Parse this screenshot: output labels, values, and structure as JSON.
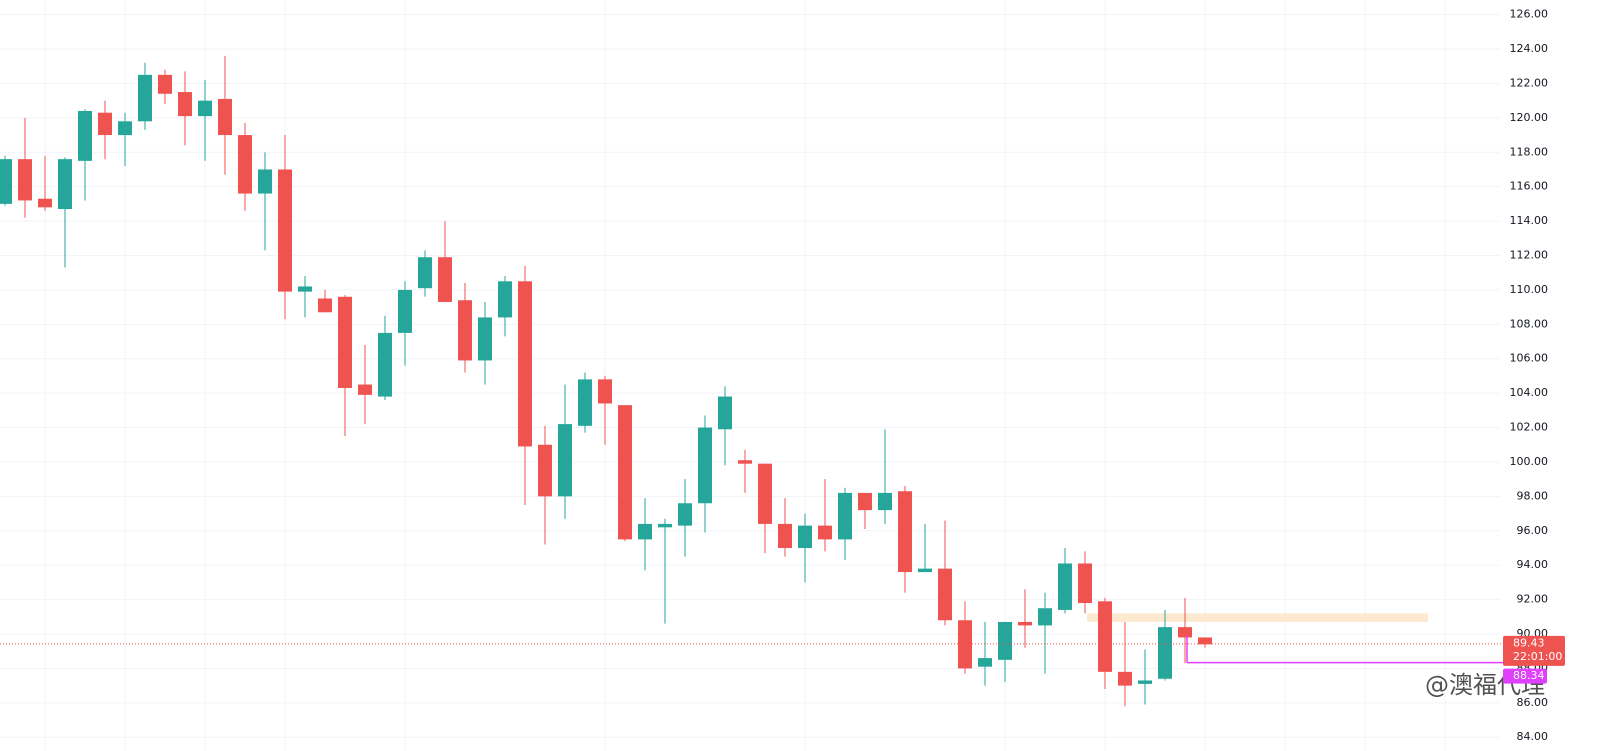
{
  "chart_data": {
    "type": "candlestick",
    "series": [
      {
        "up_color": "#26a69a",
        "down_color": "#ef5350",
        "open": [
          115.0,
          117.6,
          115.3,
          114.7,
          117.5,
          120.3,
          119.0,
          119.8,
          122.5,
          121.5,
          120.1,
          121.1,
          119.0,
          115.6,
          117.0,
          109.9,
          109.5,
          109.6,
          104.5,
          103.8,
          107.5,
          110.1,
          111.9,
          109.4,
          105.9,
          108.4,
          110.5,
          101.0,
          98.0,
          102.1,
          104.8,
          103.3,
          95.5,
          96.2,
          96.3,
          97.6,
          101.9,
          100.1,
          99.9,
          96.4,
          95.0,
          96.3,
          95.5,
          98.2,
          97.2,
          98.3,
          93.6,
          93.8,
          90.8,
          88.1,
          88.5,
          90.7,
          90.5,
          91.4,
          94.1,
          91.9,
          87.8,
          87.1,
          87.4,
          90.4,
          89.8
        ],
        "high": [
          117.8,
          120.0,
          117.8,
          117.7,
          120.5,
          121.0,
          120.3,
          123.2,
          122.8,
          122.7,
          122.2,
          123.6,
          119.7,
          118.0,
          119.0,
          110.8,
          110.0,
          109.7,
          106.8,
          108.5,
          110.5,
          112.3,
          114.0,
          110.4,
          109.3,
          110.8,
          111.4,
          102.1,
          104.5,
          105.2,
          105.0,
          103.3,
          97.9,
          96.7,
          99.0,
          102.7,
          104.4,
          100.7,
          99.9,
          97.9,
          97.0,
          99.0,
          98.5,
          98.2,
          101.9,
          98.6,
          96.4,
          96.6,
          91.9,
          90.7,
          90.7,
          92.6,
          92.4,
          95.0,
          94.8,
          92.1,
          90.7,
          89.1,
          91.4,
          92.1,
          89.8
        ],
        "low": [
          114.9,
          114.2,
          114.6,
          111.3,
          115.2,
          117.6,
          117.2,
          119.3,
          120.8,
          118.4,
          117.5,
          116.7,
          114.6,
          112.3,
          108.3,
          108.4,
          108.7,
          101.5,
          102.2,
          103.6,
          105.6,
          109.6,
          109.3,
          105.2,
          104.5,
          107.3,
          97.5,
          95.2,
          96.7,
          101.7,
          101.0,
          95.4,
          93.7,
          90.6,
          94.5,
          95.9,
          99.8,
          98.2,
          94.7,
          94.5,
          93.0,
          94.8,
          94.3,
          96.1,
          96.4,
          92.4,
          93.6,
          90.5,
          87.7,
          87.0,
          87.2,
          89.2,
          87.7,
          91.2,
          91.2,
          86.8,
          85.8,
          85.9,
          87.3,
          88.3,
          89.2
        ],
        "close": [
          117.6,
          115.2,
          114.8,
          117.6,
          120.4,
          119.0,
          119.8,
          122.5,
          121.4,
          120.1,
          121.0,
          119.0,
          115.6,
          117.0,
          109.9,
          110.2,
          108.7,
          104.3,
          103.9,
          107.5,
          110.0,
          111.9,
          109.3,
          105.9,
          108.4,
          110.5,
          100.9,
          98.0,
          102.2,
          104.8,
          103.4,
          95.5,
          96.4,
          96.4,
          97.6,
          102.0,
          103.8,
          99.9,
          96.4,
          95.0,
          96.3,
          95.5,
          98.2,
          97.2,
          98.2,
          93.6,
          93.8,
          90.8,
          88.0,
          88.6,
          90.7,
          90.5,
          91.5,
          94.1,
          91.8,
          87.8,
          87.0,
          87.3,
          90.4,
          89.8,
          89.4
        ]
      }
    ],
    "ylim": [
      83.2,
      126.85
    ],
    "yticks": [
      {
        "value": 84,
        "label": "84.00"
      },
      {
        "value": 86,
        "label": "86.00"
      },
      {
        "value": 88,
        "label": "88.00"
      },
      {
        "value": 90,
        "label": "90.00"
      },
      {
        "value": 92,
        "label": "92.00"
      },
      {
        "value": 94,
        "label": "94.00"
      },
      {
        "value": 96,
        "label": "96.00"
      },
      {
        "value": 98,
        "label": "98.00"
      },
      {
        "value": 100,
        "label": "100.00"
      },
      {
        "value": 102,
        "label": "102.00"
      },
      {
        "value": 104,
        "label": "104.00"
      },
      {
        "value": 106,
        "label": "106.00"
      },
      {
        "value": 108,
        "label": "108.00"
      },
      {
        "value": 110,
        "label": "110.00"
      },
      {
        "value": 112,
        "label": "112.00"
      },
      {
        "value": 114,
        "label": "114.00"
      },
      {
        "value": 116,
        "label": "116.00"
      },
      {
        "value": 118,
        "label": "118.00"
      },
      {
        "value": 120,
        "label": "120.00"
      },
      {
        "value": 122,
        "label": "122.00"
      },
      {
        "value": 124,
        "label": "124.00"
      },
      {
        "value": 126,
        "label": "126.00"
      }
    ],
    "grid": true,
    "last_price": {
      "value": 89.43,
      "label": "89.43",
      "countdown": "22:01:00",
      "color": "#ef5350"
    },
    "level_line": {
      "value": 88.34,
      "label": "88.34",
      "color": "#e040fb"
    },
    "zone": {
      "range": [
        90.7,
        91.2
      ],
      "color": "#fde9cf"
    },
    "watermark": "@澳福代理"
  }
}
